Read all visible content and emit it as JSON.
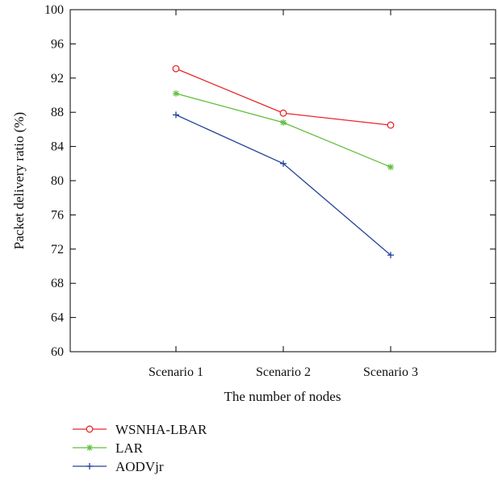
{
  "chart_data": {
    "type": "line",
    "categories": [
      "Scenario 1",
      "Scenario 2",
      "Scenario 3"
    ],
    "xlabel": "The number of nodes",
    "ylabel": "Packet delivery ratio (%)",
    "ylim": [
      60,
      100
    ],
    "yticks": [
      60,
      64,
      68,
      72,
      76,
      80,
      84,
      88,
      92,
      96,
      100
    ],
    "grid": false,
    "legend_position": "bottom-left (below plot)",
    "series": [
      {
        "name": "WSNHA-LBAR",
        "values": [
          93.1,
          87.9,
          86.5
        ],
        "color": "#e8262a",
        "marker": "circle"
      },
      {
        "name": "LAR",
        "values": [
          90.2,
          86.8,
          81.6
        ],
        "color": "#5fbf3c",
        "marker": "asterisk"
      },
      {
        "name": "AODVjr",
        "values": [
          87.7,
          82.0,
          71.3
        ],
        "color": "#23439a",
        "marker": "plus"
      }
    ]
  }
}
